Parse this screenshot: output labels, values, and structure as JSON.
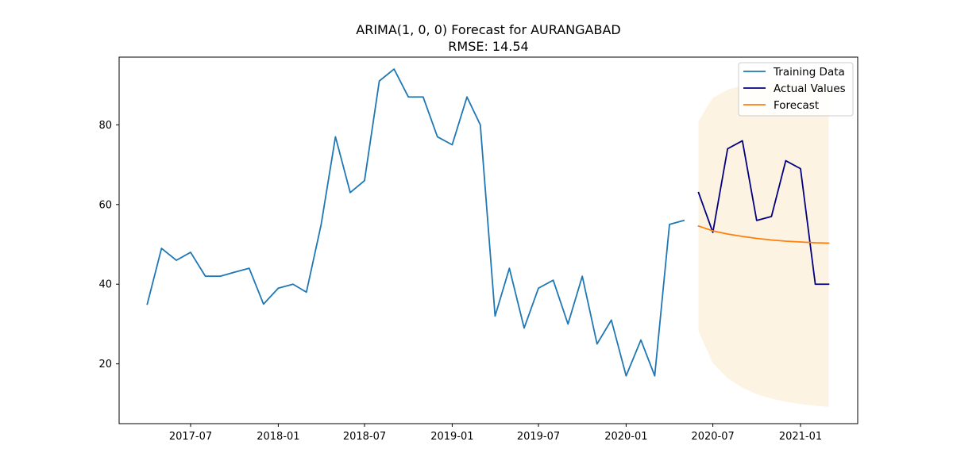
{
  "chart_data": {
    "type": "line",
    "title": "ARIMA(1, 0, 0) Forecast for AURANGABAD",
    "subtitle": "RMSE: 14.54",
    "xlabel": "",
    "ylabel": "",
    "xlim": [
      "2017-02-01",
      "2021-05-01"
    ],
    "ylim": [
      5,
      97
    ],
    "x_ticks": [
      "2017-07",
      "2018-01",
      "2018-07",
      "2019-01",
      "2019-07",
      "2020-01",
      "2020-07",
      "2021-01"
    ],
    "y_ticks": [
      20,
      40,
      60,
      80
    ],
    "grid": false,
    "legend_position": "top-right",
    "series": [
      {
        "name": "Training Data",
        "color": "#1f77b4",
        "x": [
          "2017-04",
          "2017-05",
          "2017-06",
          "2017-07",
          "2017-08",
          "2017-09",
          "2017-10",
          "2017-11",
          "2017-12",
          "2018-01",
          "2018-02",
          "2018-03",
          "2018-04",
          "2018-05",
          "2018-06",
          "2018-07",
          "2018-08",
          "2018-09",
          "2018-10",
          "2018-11",
          "2018-12",
          "2019-01",
          "2019-02",
          "2019-03",
          "2019-04",
          "2019-05",
          "2019-06",
          "2019-07",
          "2019-08",
          "2019-09",
          "2019-10",
          "2019-11",
          "2019-12",
          "2020-01",
          "2020-02",
          "2020-03",
          "2020-04",
          "2020-05"
        ],
        "values": [
          35,
          49,
          46,
          48,
          42,
          42,
          43,
          44,
          35,
          39,
          40,
          38,
          55,
          77,
          63,
          66,
          91,
          94,
          87,
          87,
          77,
          75,
          87,
          80,
          32,
          44,
          29,
          39,
          41,
          30,
          42,
          25,
          31,
          17,
          26,
          17,
          55,
          56
        ]
      },
      {
        "name": "Actual Values",
        "color": "#000080",
        "x": [
          "2020-06",
          "2020-07",
          "2020-08",
          "2020-09",
          "2020-10",
          "2020-11",
          "2020-12",
          "2021-01",
          "2021-02",
          "2021-03"
        ],
        "values": [
          63,
          53,
          74,
          76,
          56,
          57,
          71,
          69,
          40,
          40
        ]
      },
      {
        "name": "Forecast",
        "color": "#ff7f0e",
        "x": [
          "2020-06",
          "2020-07",
          "2020-08",
          "2020-09",
          "2020-10",
          "2020-11",
          "2020-12",
          "2021-01",
          "2021-02",
          "2021-03"
        ],
        "values": [
          54.6,
          53.4,
          52.6,
          52.0,
          51.5,
          51.1,
          50.8,
          50.6,
          50.4,
          50.3
        ]
      }
    ],
    "confidence_interval": {
      "color": "#fdf3e2",
      "x": [
        "2020-06",
        "2020-07",
        "2020-08",
        "2020-09",
        "2020-10",
        "2020-11",
        "2020-12",
        "2021-01",
        "2021-02",
        "2021-03"
      ],
      "upper": [
        81,
        86.8,
        88.8,
        89.9,
        90.5,
        90.8,
        91.0,
        91.1,
        91.2,
        91.3
      ],
      "lower": [
        28.2,
        20.2,
        16.4,
        14.0,
        12.4,
        11.3,
        10.5,
        9.9,
        9.5,
        9.2
      ]
    }
  }
}
